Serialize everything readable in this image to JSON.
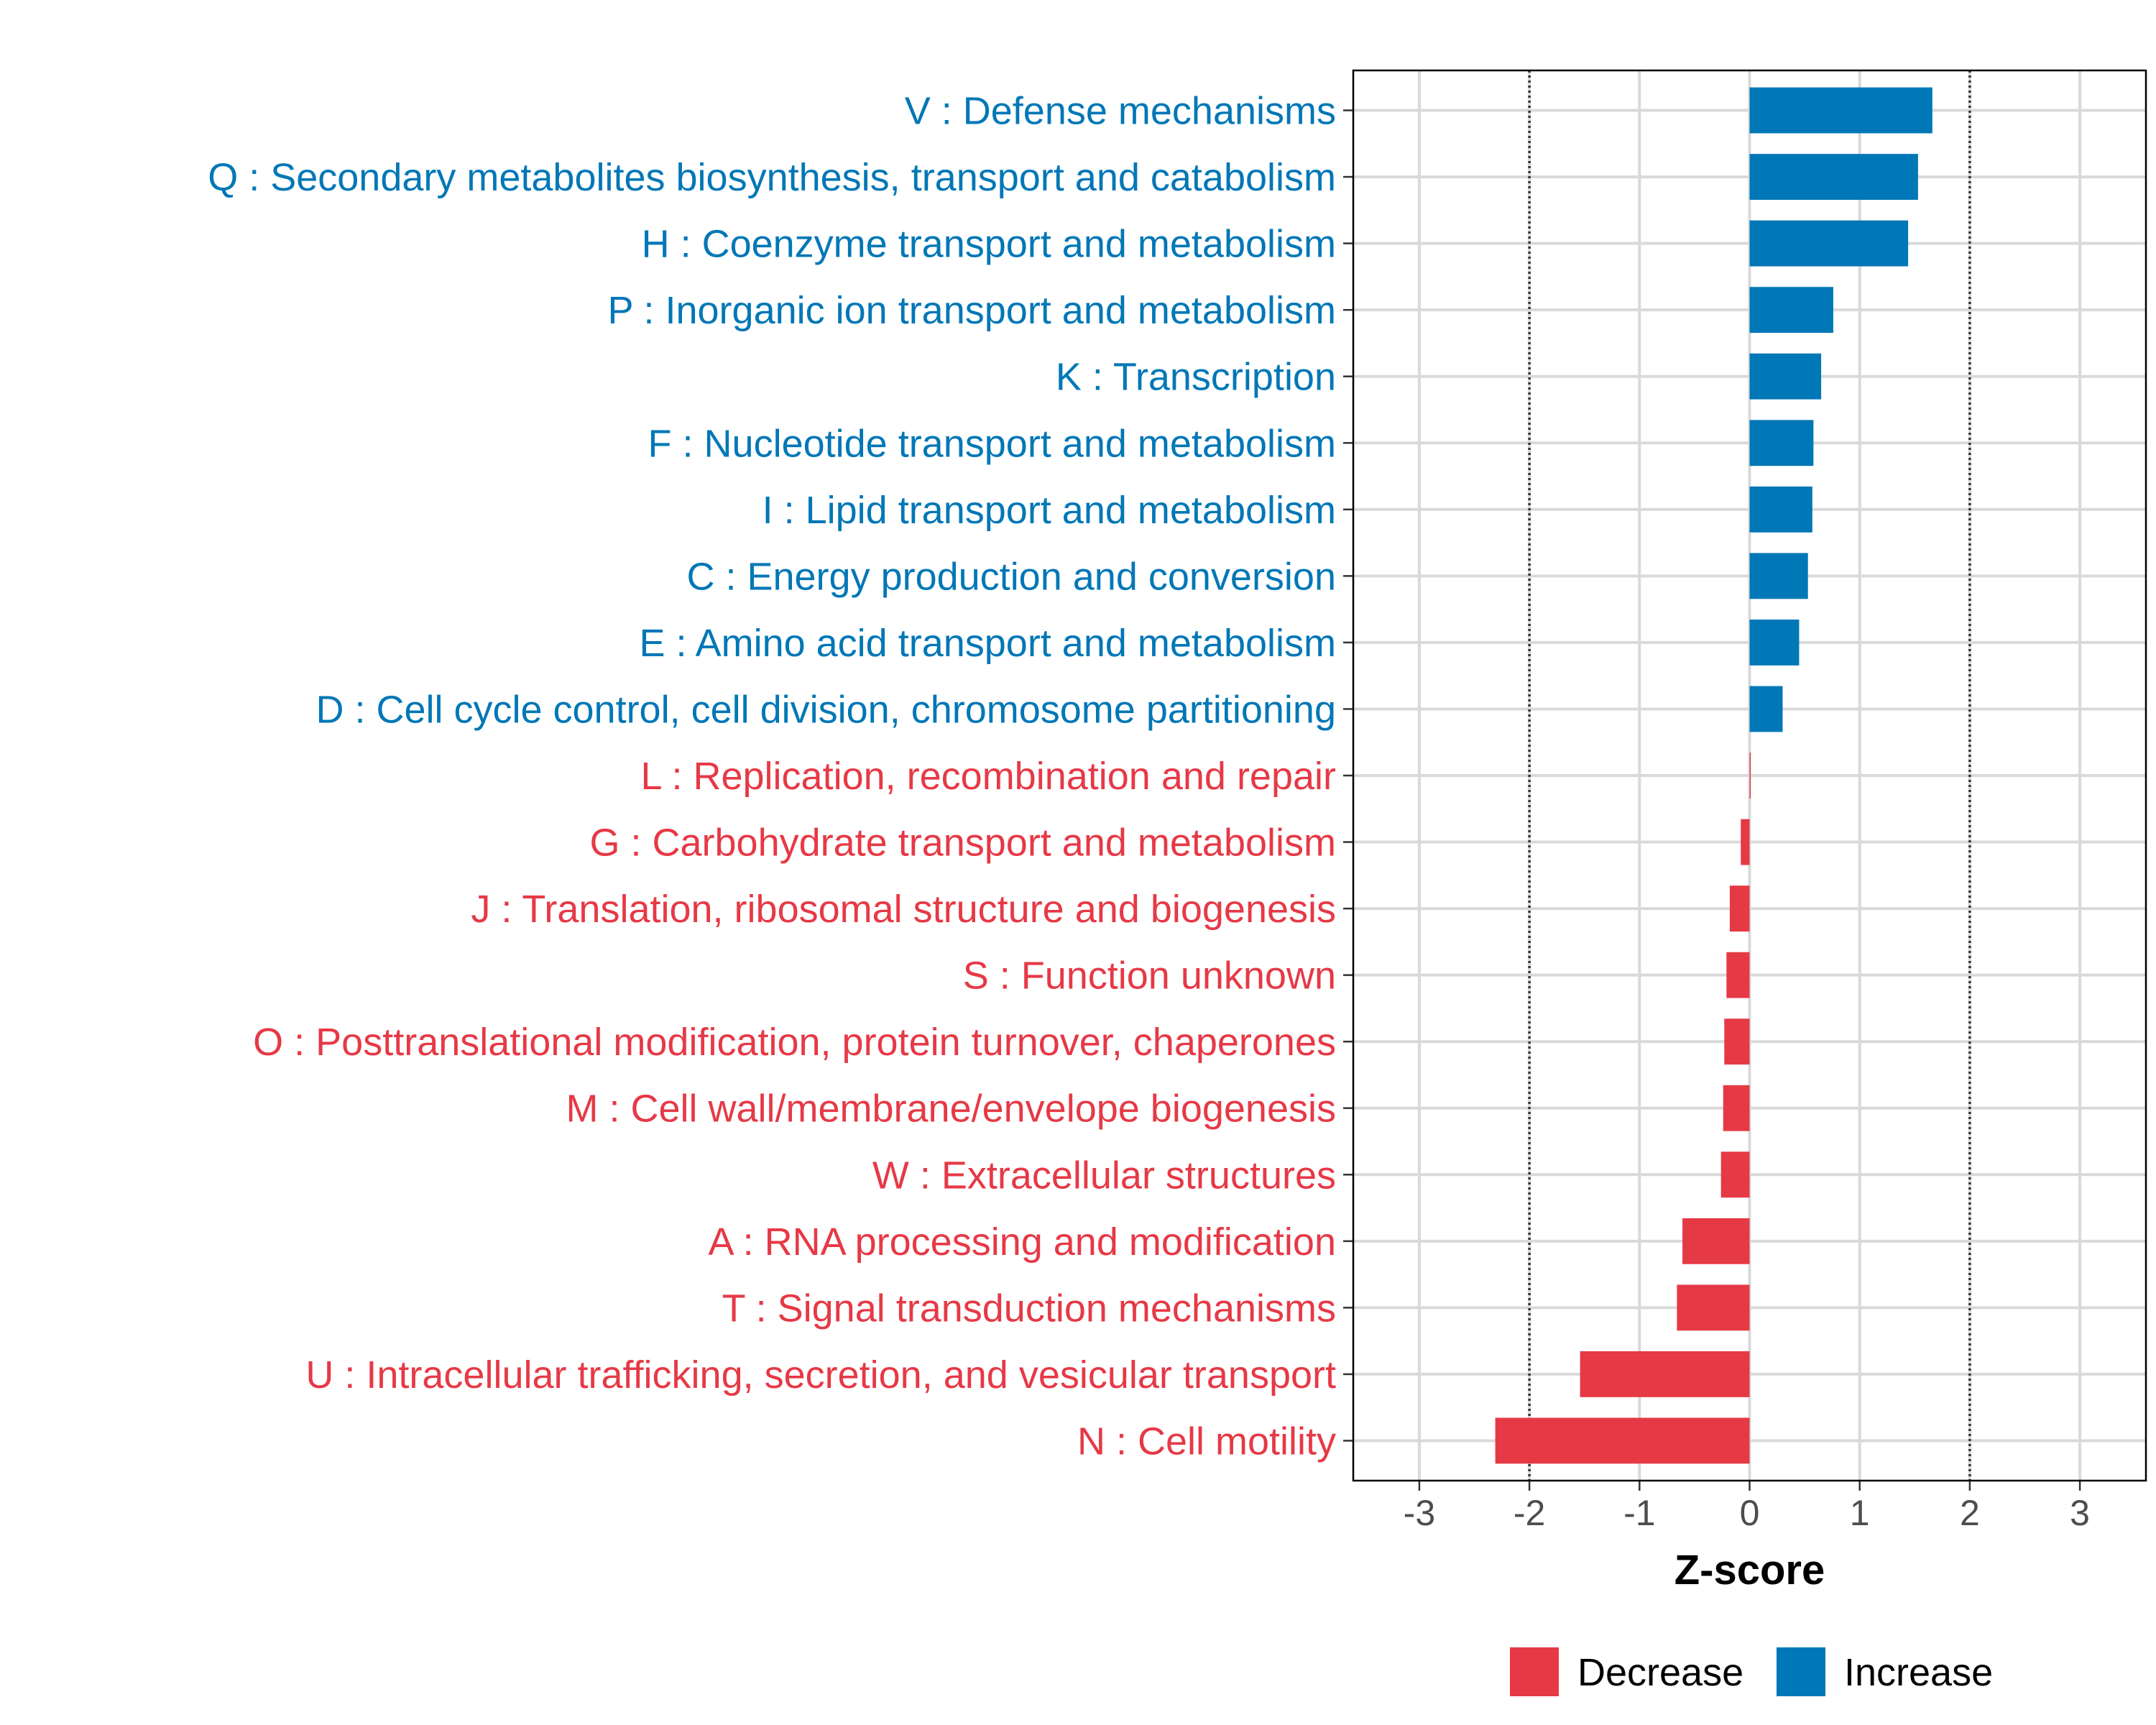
{
  "chart_data": {
    "type": "bar",
    "orientation": "horizontal",
    "xlabel": "Z-score",
    "xlim": [
      -3.6,
      3.6
    ],
    "xticks": [
      -3,
      -2,
      -1,
      0,
      1,
      2,
      3
    ],
    "xtick_labels": [
      "-3",
      "-2",
      "-1",
      "0",
      "1",
      "2",
      "3"
    ],
    "reference_lines": [
      -2,
      2
    ],
    "grid": true,
    "categories": [
      "V : Defense mechanisms",
      "Q : Secondary metabolites biosynthesis, transport and catabolism",
      "H : Coenzyme transport and metabolism",
      "P : Inorganic ion transport and metabolism",
      "K : Transcription",
      "F : Nucleotide transport and metabolism",
      "I : Lipid transport and metabolism",
      "C : Energy production and conversion",
      "E : Amino acid transport and metabolism",
      "D : Cell cycle control, cell division, chromosome partitioning",
      "L : Replication, recombination and repair",
      "G : Carbohydrate transport and metabolism",
      "J : Translation, ribosomal structure and biogenesis",
      "S : Function unknown",
      "O : Posttranslational modification, protein turnover, chaperones",
      "M : Cell wall/membrane/envelope biogenesis",
      "W : Extracellular structures",
      "A : RNA processing and modification",
      "T : Signal transduction mechanisms",
      "U : Intracellular trafficking, secretion, and vesicular transport",
      "N : Cell motility"
    ],
    "values": [
      1.66,
      1.53,
      1.44,
      0.76,
      0.65,
      0.58,
      0.57,
      0.53,
      0.45,
      0.3,
      0.01,
      -0.08,
      -0.18,
      -0.21,
      -0.23,
      -0.24,
      -0.26,
      -0.61,
      -0.66,
      -1.54,
      -2.31
    ],
    "groups": [
      "Increase",
      "Increase",
      "Increase",
      "Increase",
      "Increase",
      "Increase",
      "Increase",
      "Increase",
      "Increase",
      "Increase",
      "Decrease",
      "Decrease",
      "Decrease",
      "Decrease",
      "Decrease",
      "Decrease",
      "Decrease",
      "Decrease",
      "Decrease",
      "Decrease",
      "Decrease"
    ],
    "legend": {
      "position": "bottom",
      "entries": [
        {
          "label": "Decrease",
          "color": "#E63946"
        },
        {
          "label": "Increase",
          "color": "#0077B6"
        }
      ]
    },
    "colors": {
      "Decrease": "#E63946",
      "Increase": "#0077B6"
    }
  }
}
